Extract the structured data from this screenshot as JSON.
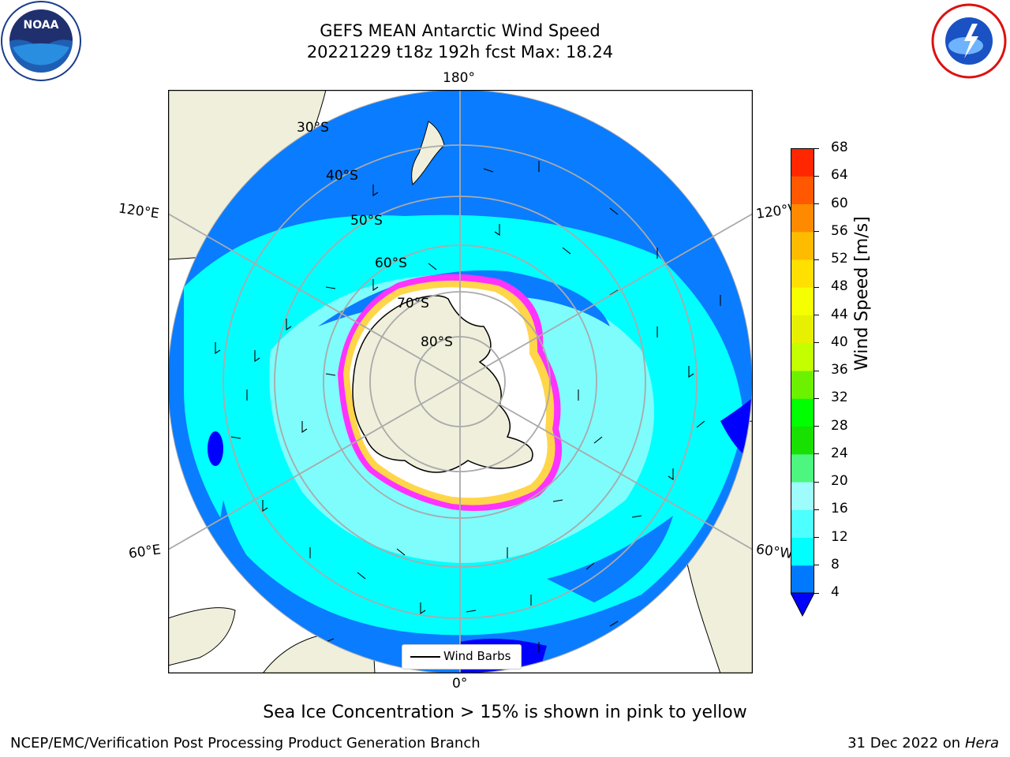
{
  "title_line1": "GEFS MEAN Antarctic Wind Speed",
  "title_line2": "20221229 t18z 192h fcst   Max: 18.24",
  "logos": {
    "left": "noaa-logo",
    "right": "national-weather-service-logo"
  },
  "map": {
    "projection": "south-polar-stereographic",
    "longitude_labels": [
      "180°",
      "120°E",
      "120°W",
      "60°E",
      "60°W",
      "0°"
    ],
    "latitude_labels": [
      "30°S",
      "40°S",
      "50°S",
      "60°S",
      "70°S",
      "80°S"
    ],
    "colors": {
      "land": "#efefdb",
      "ocean_blue": "#0a7cff",
      "ocean_cyan": "#00ffff",
      "ocean_light": "#7ffcfc",
      "deep_blue": "#0000ff",
      "ice_pink": "#ff33ff",
      "ice_yellow": "#ffd54a"
    }
  },
  "colorbar": {
    "label": "Wind Speed [m/s]",
    "ticks": [
      "4",
      "8",
      "12",
      "16",
      "20",
      "24",
      "28",
      "32",
      "36",
      "40",
      "44",
      "48",
      "52",
      "56",
      "60",
      "64",
      "68"
    ],
    "colors": [
      "#0079ff",
      "#00ffff",
      "#4dffff",
      "#9efcfc",
      "#4cf67f",
      "#18e000",
      "#00ff00",
      "#6cf100",
      "#c4ff00",
      "#e6f000",
      "#f5ff00",
      "#ffe000",
      "#ffbb00",
      "#ff8a00",
      "#ff5800",
      "#ff2600"
    ],
    "extend_color": "#0000ff"
  },
  "legend": {
    "label": "Wind Barbs"
  },
  "caption": "Sea Ice Concentration > 15% is shown in pink to yellow",
  "footer": {
    "left": "NCEP/EMC/Verification Post Processing Product Generation Branch",
    "date": "31 Dec 2022 on",
    "machine": "Hera"
  }
}
